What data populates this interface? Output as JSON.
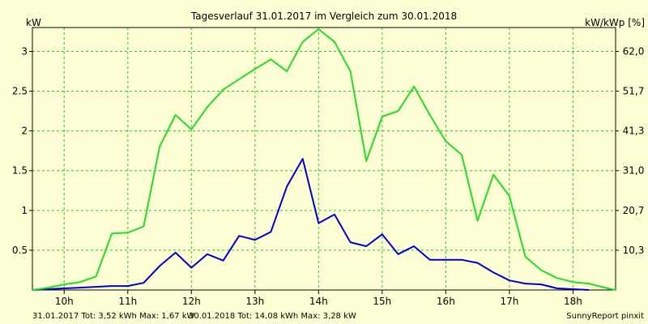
{
  "chart_data": {
    "type": "line",
    "title": "Tagesverlauf 31.01.2017 im Vergleich zum 30.01.2018",
    "ylabel_left": "kW",
    "ylabel_right": "kW/kWp [%]",
    "xlim": [
      9.5,
      18.67
    ],
    "ylim": [
      0,
      3.3
    ],
    "x_ticks": [
      10,
      11,
      12,
      13,
      14,
      15,
      16,
      17,
      18
    ],
    "x_tick_labels": [
      "10h",
      "11h",
      "12h",
      "13h",
      "14h",
      "15h",
      "16h",
      "17h",
      "18h"
    ],
    "y_ticks_left": [
      0.5,
      1,
      1.5,
      2,
      2.5,
      3
    ],
    "y_tick_labels_left": [
      "0.5",
      "1",
      "1.5",
      "2",
      "2.5",
      "3"
    ],
    "y_ticks_right_at": [
      0.5,
      1,
      1.5,
      2,
      2.5,
      3
    ],
    "y_tick_labels_right": [
      "10,3",
      "20,7",
      "31,0",
      "41,3",
      "51,7",
      "62,0"
    ],
    "grid": true,
    "colors": {
      "background": "#ffffd6",
      "grid": "#22cc22",
      "axis": "#000000",
      "series_2017": "#0000cc",
      "series_2018": "#22dd22"
    },
    "series": [
      {
        "name": "31.01.2017",
        "color": "#0000cc",
        "points": [
          [
            9.5,
            0.0
          ],
          [
            9.75,
            0.01
          ],
          [
            10.0,
            0.02
          ],
          [
            10.25,
            0.03
          ],
          [
            10.5,
            0.04
          ],
          [
            10.75,
            0.05
          ],
          [
            11.0,
            0.05
          ],
          [
            11.25,
            0.09
          ],
          [
            11.5,
            0.3
          ],
          [
            11.75,
            0.47
          ],
          [
            12.0,
            0.28
          ],
          [
            12.25,
            0.45
          ],
          [
            12.5,
            0.37
          ],
          [
            12.75,
            0.68
          ],
          [
            13.0,
            0.63
          ],
          [
            13.25,
            0.73
          ],
          [
            13.5,
            1.3
          ],
          [
            13.75,
            1.65
          ],
          [
            14.0,
            0.84
          ],
          [
            14.25,
            0.95
          ],
          [
            14.5,
            0.6
          ],
          [
            14.75,
            0.55
          ],
          [
            15.0,
            0.7
          ],
          [
            15.25,
            0.45
          ],
          [
            15.5,
            0.55
          ],
          [
            15.75,
            0.38
          ],
          [
            16.0,
            0.38
          ],
          [
            16.25,
            0.38
          ],
          [
            16.5,
            0.34
          ],
          [
            16.75,
            0.22
          ],
          [
            17.0,
            0.12
          ],
          [
            17.25,
            0.08
          ],
          [
            17.5,
            0.07
          ],
          [
            17.75,
            0.02
          ],
          [
            18.0,
            0.01
          ],
          [
            18.25,
            0.0
          ]
        ]
      },
      {
        "name": "30.01.2018",
        "color": "#22dd22",
        "points": [
          [
            9.5,
            0.0
          ],
          [
            9.75,
            0.03
          ],
          [
            10.0,
            0.07
          ],
          [
            10.25,
            0.1
          ],
          [
            10.5,
            0.17
          ],
          [
            10.75,
            0.71
          ],
          [
            11.0,
            0.72
          ],
          [
            11.25,
            0.8
          ],
          [
            11.5,
            1.8
          ],
          [
            11.75,
            2.2
          ],
          [
            12.0,
            2.02
          ],
          [
            12.25,
            2.3
          ],
          [
            12.5,
            2.52
          ],
          [
            12.75,
            2.65
          ],
          [
            13.0,
            2.78
          ],
          [
            13.25,
            2.9
          ],
          [
            13.5,
            2.75
          ],
          [
            13.75,
            3.12
          ],
          [
            14.0,
            3.28
          ],
          [
            14.25,
            3.12
          ],
          [
            14.5,
            2.75
          ],
          [
            14.75,
            1.62
          ],
          [
            15.0,
            2.18
          ],
          [
            15.25,
            2.25
          ],
          [
            15.5,
            2.56
          ],
          [
            15.75,
            2.2
          ],
          [
            16.0,
            1.87
          ],
          [
            16.25,
            1.7
          ],
          [
            16.5,
            0.87
          ],
          [
            16.75,
            1.45
          ],
          [
            17.0,
            1.18
          ],
          [
            17.25,
            0.42
          ],
          [
            17.5,
            0.25
          ],
          [
            17.75,
            0.15
          ],
          [
            18.0,
            0.1
          ],
          [
            18.25,
            0.08
          ],
          [
            18.5,
            0.03
          ],
          [
            18.67,
            0.0
          ]
        ]
      }
    ],
    "footer": {
      "series_2017_text": "31.01.2017 Tot: 3,52 kWh Max: 1,67 kW",
      "series_2018_text": "30.01.2018 Tot: 14,08 kWh Max: 3,28 kW",
      "brand": "SunnyReport pinxit"
    }
  }
}
